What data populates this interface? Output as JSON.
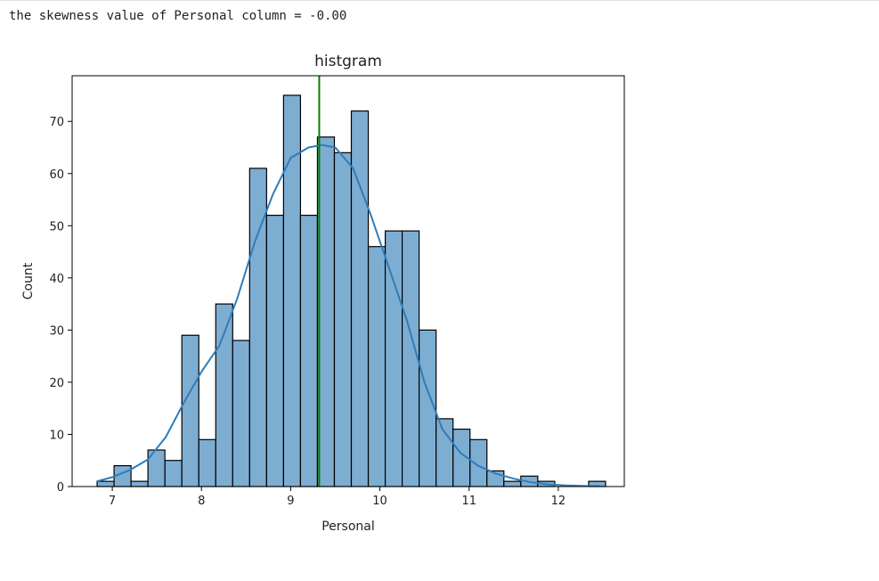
{
  "output": {
    "text": "the skewness value of Personal column = -0.00"
  },
  "chart_data": {
    "type": "bar",
    "title": "histgram",
    "xlabel": "Personal",
    "ylabel": "Count",
    "xlim": [
      6.55,
      12.74
    ],
    "ylim": [
      0,
      78.75
    ],
    "xticks": [
      7,
      8,
      9,
      10,
      11,
      12
    ],
    "yticks": [
      0,
      10,
      20,
      30,
      40,
      50,
      60,
      70
    ],
    "bin_edges": [
      6.83,
      7.02,
      7.21,
      7.4,
      7.59,
      7.78,
      7.97,
      8.16,
      8.35,
      8.54,
      8.73,
      8.92,
      9.11,
      9.3,
      9.49,
      9.68,
      9.87,
      10.06,
      10.25,
      10.44,
      10.63,
      10.82,
      11.01,
      11.2,
      11.39,
      11.58,
      11.77,
      11.96,
      12.15,
      12.34,
      12.53
    ],
    "counts": [
      1,
      4,
      1,
      7,
      5,
      29,
      9,
      35,
      28,
      61,
      52,
      75,
      52,
      67,
      64,
      72,
      46,
      49,
      49,
      30,
      13,
      11,
      9,
      3,
      1,
      2,
      1,
      0,
      0,
      1
    ],
    "bar_color": "#7eadd2",
    "bar_edge_color": "#000000",
    "kde": {
      "color": "#2f7dba",
      "x": [
        6.83,
        7.0,
        7.2,
        7.4,
        7.6,
        7.8,
        8.0,
        8.2,
        8.4,
        8.6,
        8.8,
        9.0,
        9.2,
        9.35,
        9.5,
        9.7,
        9.9,
        10.1,
        10.3,
        10.5,
        10.7,
        10.9,
        11.1,
        11.3,
        11.5,
        11.7,
        11.9,
        12.1,
        12.3,
        12.46
      ],
      "y": [
        1,
        1.8,
        3.2,
        5.2,
        9.5,
        16,
        22,
        27,
        36,
        47,
        56,
        63,
        65,
        65.5,
        65,
        61,
        52,
        42,
        32,
        20,
        11,
        6.5,
        4,
        2.5,
        1.5,
        0.8,
        0.4,
        0.2,
        0.1,
        0.1
      ]
    },
    "mean_line": {
      "x": 9.32,
      "color": "#008000"
    },
    "grid": false
  }
}
